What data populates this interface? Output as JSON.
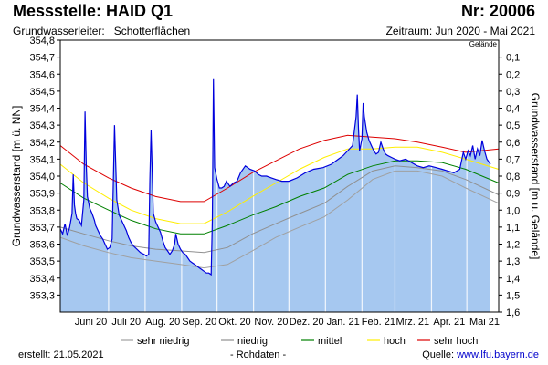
{
  "header": {
    "title": "Messstelle: HAID Q1",
    "number": "Nr: 20006",
    "aquifer_label": "Grundwasserleiter:",
    "aquifer_value": "Schotterflächen",
    "period": "Zeitraum: Jun 2020 - Mai 2021"
  },
  "footer": {
    "created": "erstellt:  21.05.2021",
    "raw_data": "- Rohdaten -",
    "source_label": "Quelle:",
    "source_url": "www.lfu.bayern.de"
  },
  "colors": {
    "area_fill": "#a6c8f0",
    "measured_line": "#0000dd",
    "sehr_niedrig": "#a0a0a0",
    "niedrig": "#909090",
    "mittel": "#008000",
    "hoch": "#ffee00",
    "sehr_hoch": "#dd0000",
    "gridline": "#ffffff",
    "axis": "#000000"
  },
  "chart_data": {
    "type": "area",
    "ylabel": "Grundwasserstand [m ü. NN]",
    "ylabel_right": "Grundwasserstand [m u. Gelände]",
    "right_axis_top_label": "Gelände",
    "ylim": [
      353.2,
      354.8
    ],
    "ylim_right": [
      0.0,
      1.6
    ],
    "ground_level": 354.8,
    "grid": "vertical",
    "legend_position": "bottom",
    "y_ticks": [
      "353,3",
      "353,4",
      "353,5",
      "353,6",
      "353,7",
      "353,8",
      "353,9",
      "354,0",
      "354,1",
      "354,2",
      "354,3",
      "354,4",
      "354,5",
      "354,6",
      "354,7",
      "354,8"
    ],
    "y_ticks_right": [
      "0,1",
      "0,2",
      "0,3",
      "0,4",
      "0,5",
      "0,6",
      "0,7",
      "0,8",
      "0,9",
      "1,0",
      "1,1",
      "1,2",
      "1,3",
      "1,4",
      "1,5",
      "1,6"
    ],
    "x_start": "2020-05-21",
    "x_end": "2021-05-28",
    "month_labels": [
      {
        "label": "Juni 20",
        "date": "2020-06-16"
      },
      {
        "label": "Juli 20",
        "date": "2020-07-16"
      },
      {
        "label": "Aug. 20",
        "date": "2020-08-16"
      },
      {
        "label": "Sep. 20",
        "date": "2020-09-16"
      },
      {
        "label": "Okt. 20",
        "date": "2020-10-16"
      },
      {
        "label": "Nov. 20",
        "date": "2020-11-16"
      },
      {
        "label": "Dez. 20",
        "date": "2020-12-16"
      },
      {
        "label": "Jan. 21",
        "date": "2021-01-16"
      },
      {
        "label": "Feb. 21",
        "date": "2021-02-15"
      },
      {
        "label": "Mrz. 21",
        "date": "2021-03-16"
      },
      {
        "label": "Apr. 21",
        "date": "2021-04-16"
      },
      {
        "label": "Mai 21",
        "date": "2021-05-16"
      }
    ],
    "month_boundaries": [
      "2020-07-01",
      "2020-08-01",
      "2020-09-01",
      "2020-10-01",
      "2020-11-01",
      "2020-12-01",
      "2021-01-01",
      "2021-02-01",
      "2021-03-01",
      "2021-04-01",
      "2021-05-01"
    ],
    "series": [
      {
        "name": "Rohdaten",
        "key": "measured",
        "x": [
          "2020-05-21",
          "2020-05-23",
          "2020-05-25",
          "2020-05-27",
          "2020-05-29",
          "2020-05-31",
          "2020-06-01",
          "2020-06-02",
          "2020-06-03",
          "2020-06-04",
          "2020-06-06",
          "2020-06-08",
          "2020-06-10",
          "2020-06-11",
          "2020-06-12",
          "2020-06-13",
          "2020-06-15",
          "2020-06-17",
          "2020-06-19",
          "2020-06-20",
          "2020-06-22",
          "2020-06-24",
          "2020-06-26",
          "2020-06-28",
          "2020-06-30",
          "2020-07-02",
          "2020-07-04",
          "2020-07-06",
          "2020-07-08",
          "2020-07-10",
          "2020-07-12",
          "2020-07-14",
          "2020-07-16",
          "2020-07-18",
          "2020-07-20",
          "2020-07-22",
          "2020-07-25",
          "2020-07-28",
          "2020-07-31",
          "2020-08-02",
          "2020-08-04",
          "2020-08-05",
          "2020-08-06",
          "2020-08-08",
          "2020-08-10",
          "2020-08-12",
          "2020-08-14",
          "2020-08-16",
          "2020-08-18",
          "2020-08-20",
          "2020-08-22",
          "2020-08-24",
          "2020-08-26",
          "2020-08-27",
          "2020-08-29",
          "2020-08-31",
          "2020-09-02",
          "2020-09-04",
          "2020-09-06",
          "2020-09-08",
          "2020-09-10",
          "2020-09-12",
          "2020-09-14",
          "2020-09-16",
          "2020-09-18",
          "2020-09-20",
          "2020-09-22",
          "2020-09-24",
          "2020-09-26",
          "2020-09-27",
          "2020-09-28",
          "2020-09-29",
          "2020-10-01",
          "2020-10-03",
          "2020-10-05",
          "2020-10-07",
          "2020-10-09",
          "2020-10-12",
          "2020-10-15",
          "2020-10-18",
          "2020-10-21",
          "2020-10-25",
          "2020-10-29",
          "2020-11-02",
          "2020-11-05",
          "2020-11-08",
          "2020-11-12",
          "2020-11-16",
          "2020-11-20",
          "2020-11-25",
          "2020-12-01",
          "2020-12-08",
          "2020-12-15",
          "2020-12-22",
          "2020-12-30",
          "2021-01-06",
          "2021-01-12",
          "2021-01-16",
          "2021-01-20",
          "2021-01-24",
          "2021-01-27",
          "2021-01-28",
          "2021-01-29",
          "2021-01-30",
          "2021-02-01",
          "2021-02-02",
          "2021-02-03",
          "2021-02-05",
          "2021-02-07",
          "2021-02-09",
          "2021-02-11",
          "2021-02-13",
          "2021-02-15",
          "2021-02-17",
          "2021-02-19",
          "2021-02-21",
          "2021-02-23",
          "2021-02-26",
          "2021-03-01",
          "2021-03-05",
          "2021-03-10",
          "2021-03-15",
          "2021-03-20",
          "2021-03-25",
          "2021-03-30",
          "2021-04-05",
          "2021-04-10",
          "2021-04-15",
          "2021-04-20",
          "2021-04-25",
          "2021-04-28",
          "2021-04-30",
          "2021-05-02",
          "2021-05-04",
          "2021-05-06",
          "2021-05-08",
          "2021-05-10",
          "2021-05-12",
          "2021-05-14",
          "2021-05-16",
          "2021-05-18",
          "2021-05-20",
          "2021-05-21"
        ],
        "y": [
          353.69,
          353.66,
          353.72,
          353.65,
          353.7,
          353.78,
          354.01,
          353.83,
          353.78,
          353.75,
          353.74,
          353.71,
          353.86,
          354.38,
          354.07,
          353.88,
          353.81,
          353.78,
          353.74,
          353.71,
          353.68,
          353.65,
          353.63,
          353.6,
          353.57,
          353.58,
          353.63,
          354.3,
          353.86,
          353.77,
          353.74,
          353.71,
          353.68,
          353.64,
          353.61,
          353.59,
          353.57,
          353.55,
          353.54,
          353.53,
          353.54,
          353.98,
          354.27,
          353.78,
          353.73,
          353.7,
          353.67,
          353.62,
          353.58,
          353.56,
          353.54,
          353.56,
          353.6,
          353.66,
          353.6,
          353.57,
          353.55,
          353.54,
          353.52,
          353.5,
          353.49,
          353.48,
          353.47,
          353.46,
          353.45,
          353.44,
          353.43,
          353.43,
          353.42,
          353.74,
          354.57,
          354.05,
          353.98,
          353.93,
          353.93,
          353.94,
          353.97,
          353.94,
          353.96,
          353.97,
          354.02,
          354.06,
          354.04,
          354.03,
          354.01,
          354.0,
          354.0,
          353.99,
          353.98,
          353.97,
          353.97,
          353.99,
          354.02,
          354.04,
          354.05,
          354.07,
          354.1,
          354.12,
          354.15,
          354.18,
          354.35,
          354.48,
          354.28,
          354.15,
          354.22,
          354.43,
          354.35,
          354.26,
          354.21,
          354.18,
          354.15,
          354.13,
          354.14,
          354.2,
          354.16,
          354.13,
          354.12,
          354.11,
          354.1,
          354.09,
          354.1,
          354.08,
          354.06,
          354.05,
          354.06,
          354.05,
          354.04,
          354.03,
          354.02,
          354.04,
          354.14,
          354.1,
          354.15,
          354.12,
          354.18,
          354.1,
          354.16,
          354.12,
          354.21,
          354.15,
          354.1,
          354.08,
          354.07
        ]
      },
      {
        "name": "sehr niedrig",
        "key": "sehr_niedrig",
        "x": [
          "2020-05-21",
          "2020-06-10",
          "2020-07-01",
          "2020-07-20",
          "2020-08-10",
          "2020-08-31",
          "2020-09-20",
          "2020-10-10",
          "2020-10-31",
          "2020-11-20",
          "2020-12-10",
          "2020-12-31",
          "2021-01-20",
          "2021-02-10",
          "2021-03-01",
          "2021-03-20",
          "2021-04-10",
          "2021-04-30",
          "2021-05-28"
        ],
        "y": [
          353.64,
          353.59,
          353.55,
          353.52,
          353.5,
          353.48,
          353.46,
          353.48,
          353.56,
          353.64,
          353.7,
          353.76,
          353.86,
          353.98,
          354.03,
          354.03,
          354.0,
          353.93,
          353.84
        ]
      },
      {
        "name": "niedrig",
        "key": "niedrig",
        "x": [
          "2020-05-21",
          "2020-06-10",
          "2020-07-01",
          "2020-07-20",
          "2020-08-10",
          "2020-08-31",
          "2020-09-20",
          "2020-10-10",
          "2020-10-31",
          "2020-11-20",
          "2020-12-10",
          "2020-12-31",
          "2021-01-20",
          "2021-02-10",
          "2021-03-01",
          "2021-03-20",
          "2021-04-10",
          "2021-04-30",
          "2021-05-28"
        ],
        "y": [
          353.7,
          353.66,
          353.62,
          353.59,
          353.57,
          353.56,
          353.55,
          353.58,
          353.66,
          353.72,
          353.78,
          353.84,
          353.94,
          354.03,
          354.06,
          354.05,
          354.03,
          353.98,
          353.89
        ]
      },
      {
        "name": "mittel",
        "key": "mittel",
        "x": [
          "2020-05-21",
          "2020-06-10",
          "2020-07-01",
          "2020-07-20",
          "2020-08-10",
          "2020-08-31",
          "2020-09-20",
          "2020-10-10",
          "2020-10-31",
          "2020-11-20",
          "2020-12-10",
          "2020-12-31",
          "2021-01-20",
          "2021-02-10",
          "2021-03-01",
          "2021-03-20",
          "2021-04-10",
          "2021-04-30",
          "2021-05-28"
        ],
        "y": [
          353.96,
          353.87,
          353.8,
          353.74,
          353.69,
          353.66,
          353.66,
          353.71,
          353.77,
          353.82,
          353.88,
          353.93,
          354.01,
          354.06,
          354.09,
          354.09,
          354.08,
          354.04,
          353.96
        ]
      },
      {
        "name": "hoch",
        "key": "hoch",
        "x": [
          "2020-05-21",
          "2020-06-10",
          "2020-07-01",
          "2020-07-20",
          "2020-08-10",
          "2020-08-31",
          "2020-09-20",
          "2020-10-10",
          "2020-10-31",
          "2020-11-20",
          "2020-12-10",
          "2020-12-31",
          "2021-01-20",
          "2021-02-10",
          "2021-03-01",
          "2021-03-20",
          "2021-04-10",
          "2021-04-30",
          "2021-05-28"
        ],
        "y": [
          354.07,
          353.96,
          353.87,
          353.8,
          353.75,
          353.72,
          353.72,
          353.79,
          353.88,
          353.96,
          354.04,
          354.11,
          354.16,
          354.16,
          354.17,
          354.17,
          354.14,
          354.1,
          354.04
        ]
      },
      {
        "name": "sehr hoch",
        "key": "sehr_hoch",
        "x": [
          "2020-05-21",
          "2020-06-10",
          "2020-07-01",
          "2020-07-20",
          "2020-08-10",
          "2020-08-31",
          "2020-09-20",
          "2020-10-10",
          "2020-10-31",
          "2020-11-20",
          "2020-12-10",
          "2020-12-31",
          "2021-01-20",
          "2021-02-10",
          "2021-03-01",
          "2021-03-20",
          "2021-04-10",
          "2021-04-30",
          "2021-05-28"
        ],
        "y": [
          354.18,
          354.07,
          353.99,
          353.93,
          353.88,
          353.85,
          353.85,
          353.93,
          354.02,
          354.09,
          354.16,
          354.21,
          354.24,
          354.23,
          354.22,
          354.2,
          354.17,
          354.14,
          354.16
        ]
      }
    ]
  }
}
